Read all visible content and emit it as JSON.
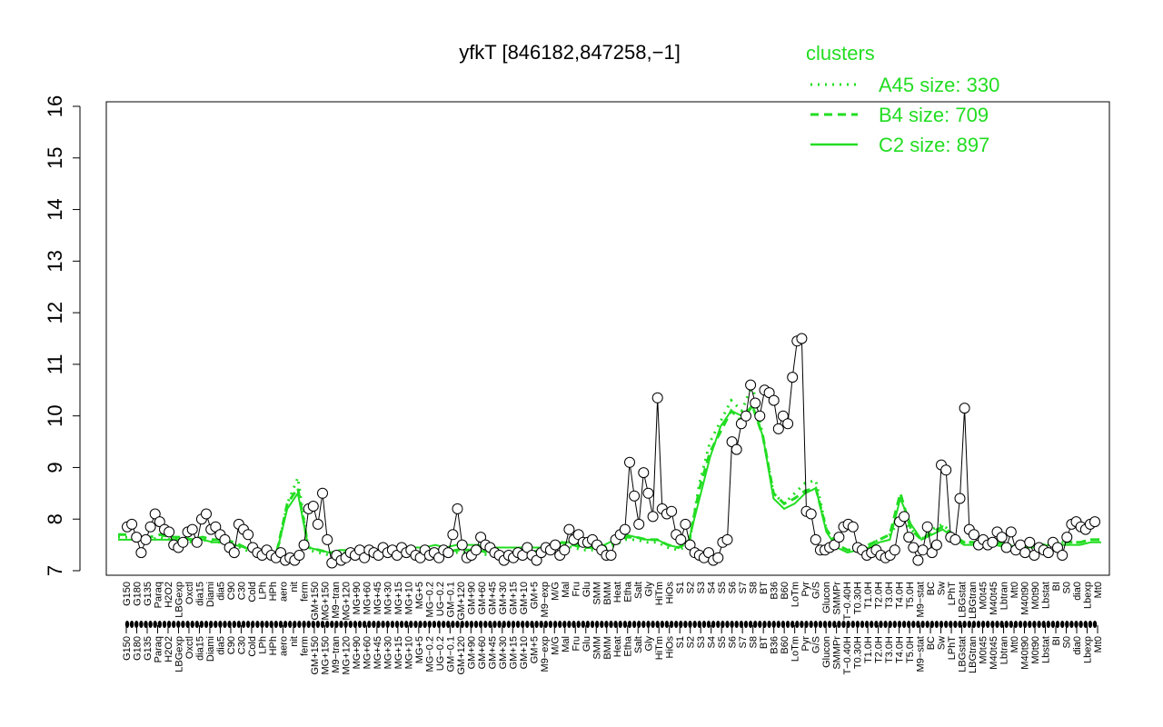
{
  "chart_data": {
    "type": "line",
    "title": "yfkT [846182,847258,−1]",
    "xlabel": "",
    "ylabel": "",
    "ylim": [
      7,
      16
    ],
    "yticks": [
      7,
      8,
      9,
      10,
      11,
      12,
      13,
      14,
      15,
      16
    ],
    "xticks": [
      "G150",
      "G180",
      "G135",
      "Paraq",
      "H2O2",
      "LBGexp",
      "Oxctl",
      "dia15",
      "Diami",
      "dia5",
      "C90",
      "C30",
      "Cold",
      "LPh",
      "HPh",
      "aero",
      "nit",
      "ferm",
      "GM+150",
      "MG+150",
      "M9−tran",
      "MG+120",
      "MG+90",
      "MG+60",
      "MG+45",
      "MG+30",
      "MG+15",
      "MG+10",
      "MG+5",
      "MG−0.2",
      "UG−0.2",
      "GM−0.1",
      "GM+120",
      "GM+90",
      "GM+60",
      "GM+45",
      "GM+30",
      "GM+15",
      "GM+10",
      "GM+5",
      "M9−exp",
      "M/G",
      "Mal",
      "Fru",
      "Glu",
      "SMM",
      "BMM",
      "Heat",
      "Etha",
      "Salt",
      "Gly",
      "HiTm",
      "HiOs",
      "S1",
      "S2",
      "S3",
      "S4",
      "S5",
      "S6",
      "S7",
      "S8",
      "BT",
      "B36",
      "B60",
      "LoTm",
      "Pyr",
      "G/S",
      "Glucon",
      "SMMPr",
      "T−0.40H",
      "T0.30H",
      "T1.0H",
      "T2.0H",
      "T3.0H",
      "T4.0H",
      "T5.0H",
      "M9−stat",
      "BC",
      "Sw",
      "LPhT",
      "LBGstat",
      "LBGtran",
      "M0t45",
      "M40t45",
      "Lbtran",
      "Mt0",
      "M40t90",
      "M0t90",
      "Lbstat",
      "BI",
      "S0",
      "dia0",
      "Lbexp",
      "Mt0"
    ],
    "legend": {
      "title": "clusters",
      "position": "top-right",
      "entries": [
        {
          "label": "A45 size: 330",
          "style": "dotted"
        },
        {
          "label": "B4 size: 709",
          "style": "dashed"
        },
        {
          "label": "C2 size: 897",
          "style": "solid"
        }
      ]
    },
    "series": [
      {
        "style": "dotted",
        "values": [
          7.65,
          7.65,
          7.6,
          7.6,
          7.65,
          7.6,
          7.6,
          7.55,
          7.6,
          7.55,
          7.55,
          7.5,
          7.4,
          7.35,
          7.3,
          7.3,
          8.3,
          8.8,
          7.4,
          7.35,
          7.3,
          7.3,
          7.3,
          7.3,
          7.3,
          7.3,
          7.3,
          7.3,
          7.3,
          7.3,
          7.35,
          7.3,
          7.35,
          7.35,
          7.35,
          7.3,
          7.3,
          7.3,
          7.3,
          7.3,
          7.35,
          7.4,
          7.5,
          7.45,
          7.4,
          7.4,
          7.4,
          7.5,
          7.6,
          7.6,
          7.55,
          7.55,
          7.45,
          7.4,
          7.5,
          8.7,
          9.5,
          9.9,
          10.3,
          10.1,
          10.6,
          9.6,
          8.5,
          8.3,
          8.5,
          8.7,
          8.75,
          7.8,
          7.5,
          7.4,
          7.4,
          7.5,
          7.6,
          7.7,
          8.0,
          7.8,
          7.6,
          7.8,
          7.9,
          7.7,
          7.55,
          7.55,
          7.6,
          7.55,
          7.5,
          7.45,
          7.45,
          7.5,
          7.5,
          7.55,
          7.55,
          7.55,
          7.6,
          7.6
        ]
      },
      {
        "style": "dashed",
        "values": [
          7.7,
          7.7,
          7.65,
          7.65,
          7.7,
          7.65,
          7.65,
          7.6,
          7.65,
          7.6,
          7.6,
          7.55,
          7.45,
          7.4,
          7.35,
          7.35,
          8.3,
          8.6,
          7.45,
          7.4,
          7.35,
          7.35,
          7.35,
          7.35,
          7.35,
          7.35,
          7.35,
          7.35,
          7.35,
          7.35,
          7.4,
          7.35,
          7.4,
          7.4,
          7.4,
          7.35,
          7.35,
          7.35,
          7.35,
          7.35,
          7.4,
          7.45,
          7.55,
          7.5,
          7.45,
          7.45,
          7.45,
          7.55,
          7.65,
          7.65,
          7.6,
          7.6,
          7.5,
          7.45,
          7.55,
          8.6,
          9.3,
          9.7,
          10.1,
          9.9,
          10.2,
          9.6,
          8.5,
          8.3,
          8.4,
          8.55,
          8.6,
          7.8,
          7.5,
          7.4,
          7.4,
          7.5,
          7.6,
          7.7,
          8.5,
          7.8,
          7.6,
          7.75,
          7.85,
          7.7,
          7.55,
          7.55,
          7.6,
          7.55,
          7.5,
          7.45,
          7.45,
          7.5,
          7.5,
          7.55,
          7.55,
          7.55,
          7.6,
          7.6
        ]
      },
      {
        "style": "solid",
        "values": [
          7.6,
          7.6,
          7.6,
          7.6,
          7.6,
          7.6,
          7.6,
          7.6,
          7.6,
          7.55,
          7.55,
          7.5,
          7.45,
          7.4,
          7.35,
          7.35,
          8.2,
          8.5,
          7.45,
          7.4,
          7.35,
          7.4,
          7.4,
          7.4,
          7.4,
          7.4,
          7.45,
          7.4,
          7.45,
          7.45,
          7.5,
          7.45,
          7.5,
          7.5,
          7.5,
          7.45,
          7.45,
          7.45,
          7.45,
          7.45,
          7.45,
          7.45,
          7.55,
          7.55,
          7.5,
          7.5,
          7.5,
          7.6,
          7.7,
          7.65,
          7.6,
          7.6,
          7.5,
          7.45,
          7.6,
          8.4,
          9.2,
          9.8,
          10.1,
          10.0,
          10.2,
          9.6,
          8.4,
          8.2,
          8.3,
          8.5,
          8.6,
          7.75,
          7.45,
          7.35,
          7.4,
          7.45,
          7.55,
          7.6,
          8.4,
          7.9,
          7.6,
          7.7,
          7.8,
          7.65,
          7.5,
          7.5,
          7.55,
          7.5,
          7.45,
          7.45,
          7.45,
          7.45,
          7.5,
          7.5,
          7.5,
          7.5,
          7.55,
          7.55
        ]
      }
    ],
    "points": [
      {
        "x": 1,
        "y": 7.85
      },
      {
        "x": 2,
        "y": 7.9
      },
      {
        "x": 3,
        "y": 7.65
      },
      {
        "x": 4,
        "y": 7.35
      },
      {
        "x": 5,
        "y": 7.6
      },
      {
        "x": 6,
        "y": 7.85
      },
      {
        "x": 7,
        "y": 8.1
      },
      {
        "x": 8,
        "y": 7.95
      },
      {
        "x": 9,
        "y": 7.8
      },
      {
        "x": 10,
        "y": 7.75
      },
      {
        "x": 11,
        "y": 7.5
      },
      {
        "x": 12,
        "y": 7.45
      },
      {
        "x": 13,
        "y": 7.55
      },
      {
        "x": 14,
        "y": 7.75
      },
      {
        "x": 15,
        "y": 7.8
      },
      {
        "x": 16,
        "y": 7.55
      },
      {
        "x": 17,
        "y": 8.0
      },
      {
        "x": 18,
        "y": 8.1
      },
      {
        "x": 19,
        "y": 7.8
      },
      {
        "x": 20,
        "y": 7.85
      },
      {
        "x": 21,
        "y": 7.7
      },
      {
        "x": 22,
        "y": 7.6
      },
      {
        "x": 23,
        "y": 7.45
      },
      {
        "x": 24,
        "y": 7.35
      },
      {
        "x": 25,
        "y": 7.9
      },
      {
        "x": 26,
        "y": 7.8
      },
      {
        "x": 27,
        "y": 7.7
      },
      {
        "x": 28,
        "y": 7.45
      },
      {
        "x": 29,
        "y": 7.35
      },
      {
        "x": 30,
        "y": 7.3
      },
      {
        "x": 31,
        "y": 7.4
      },
      {
        "x": 32,
        "y": 7.3
      },
      {
        "x": 33,
        "y": 7.25
      },
      {
        "x": 34,
        "y": 7.35
      },
      {
        "x": 35,
        "y": 7.2
      },
      {
        "x": 36,
        "y": 7.25
      },
      {
        "x": 37,
        "y": 7.2
      },
      {
        "x": 38,
        "y": 7.3
      },
      {
        "x": 39,
        "y": 7.5
      },
      {
        "x": 40,
        "y": 8.2
      },
      {
        "x": 41,
        "y": 8.25
      },
      {
        "x": 42,
        "y": 7.9
      },
      {
        "x": 43,
        "y": 8.5
      },
      {
        "x": 44,
        "y": 7.6
      },
      {
        "x": 45,
        "y": 7.15
      },
      {
        "x": 46,
        "y": 7.3
      },
      {
        "x": 47,
        "y": 7.2
      },
      {
        "x": 48,
        "y": 7.25
      },
      {
        "x": 49,
        "y": 7.35
      },
      {
        "x": 50,
        "y": 7.3
      },
      {
        "x": 51,
        "y": 7.4
      },
      {
        "x": 52,
        "y": 7.25
      },
      {
        "x": 53,
        "y": 7.4
      },
      {
        "x": 54,
        "y": 7.35
      },
      {
        "x": 55,
        "y": 7.3
      },
      {
        "x": 56,
        "y": 7.45
      },
      {
        "x": 57,
        "y": 7.35
      },
      {
        "x": 58,
        "y": 7.4
      },
      {
        "x": 59,
        "y": 7.3
      },
      {
        "x": 60,
        "y": 7.45
      },
      {
        "x": 61,
        "y": 7.35
      },
      {
        "x": 62,
        "y": 7.4
      },
      {
        "x": 63,
        "y": 7.3
      },
      {
        "x": 64,
        "y": 7.25
      },
      {
        "x": 65,
        "y": 7.4
      },
      {
        "x": 66,
        "y": 7.3
      },
      {
        "x": 67,
        "y": 7.35
      },
      {
        "x": 68,
        "y": 7.25
      },
      {
        "x": 69,
        "y": 7.4
      },
      {
        "x": 70,
        "y": 7.35
      },
      {
        "x": 71,
        "y": 7.7
      },
      {
        "x": 72,
        "y": 8.2
      },
      {
        "x": 73,
        "y": 7.5
      },
      {
        "x": 74,
        "y": 7.25
      },
      {
        "x": 75,
        "y": 7.3
      },
      {
        "x": 76,
        "y": 7.4
      },
      {
        "x": 77,
        "y": 7.65
      },
      {
        "x": 78,
        "y": 7.5
      },
      {
        "x": 79,
        "y": 7.45
      },
      {
        "x": 80,
        "y": 7.35
      },
      {
        "x": 81,
        "y": 7.3
      },
      {
        "x": 82,
        "y": 7.2
      },
      {
        "x": 83,
        "y": 7.3
      },
      {
        "x": 84,
        "y": 7.25
      },
      {
        "x": 85,
        "y": 7.35
      },
      {
        "x": 86,
        "y": 7.3
      },
      {
        "x": 87,
        "y": 7.45
      },
      {
        "x": 88,
        "y": 7.3
      },
      {
        "x": 89,
        "y": 7.2
      },
      {
        "x": 90,
        "y": 7.35
      },
      {
        "x": 91,
        "y": 7.45
      },
      {
        "x": 92,
        "y": 7.4
      },
      {
        "x": 93,
        "y": 7.5
      },
      {
        "x": 94,
        "y": 7.3
      },
      {
        "x": 95,
        "y": 7.4
      },
      {
        "x": 96,
        "y": 7.8
      },
      {
        "x": 97,
        "y": 7.6
      },
      {
        "x": 98,
        "y": 7.7
      },
      {
        "x": 99,
        "y": 7.55
      },
      {
        "x": 100,
        "y": 7.55
      },
      {
        "x": 101,
        "y": 7.6
      },
      {
        "x": 102,
        "y": 7.5
      },
      {
        "x": 103,
        "y": 7.4
      },
      {
        "x": 104,
        "y": 7.3
      },
      {
        "x": 105,
        "y": 7.3
      },
      {
        "x": 106,
        "y": 7.6
      },
      {
        "x": 107,
        "y": 7.7
      },
      {
        "x": 108,
        "y": 7.8
      },
      {
        "x": 109,
        "y": 9.1
      },
      {
        "x": 110,
        "y": 8.45
      },
      {
        "x": 111,
        "y": 7.9
      },
      {
        "x": 112,
        "y": 8.9
      },
      {
        "x": 113,
        "y": 8.5
      },
      {
        "x": 114,
        "y": 8.05
      },
      {
        "x": 115,
        "y": 10.35
      },
      {
        "x": 116,
        "y": 8.2
      },
      {
        "x": 117,
        "y": 8.1
      },
      {
        "x": 118,
        "y": 8.15
      },
      {
        "x": 119,
        "y": 7.7
      },
      {
        "x": 120,
        "y": 7.6
      },
      {
        "x": 121,
        "y": 7.9
      },
      {
        "x": 122,
        "y": 7.5
      },
      {
        "x": 123,
        "y": 7.35
      },
      {
        "x": 124,
        "y": 7.3
      },
      {
        "x": 125,
        "y": 7.25
      },
      {
        "x": 126,
        "y": 7.35
      },
      {
        "x": 127,
        "y": 7.2
      },
      {
        "x": 128,
        "y": 7.25
      },
      {
        "x": 129,
        "y": 7.55
      },
      {
        "x": 130,
        "y": 7.6
      },
      {
        "x": 131,
        "y": 9.5
      },
      {
        "x": 132,
        "y": 9.35
      },
      {
        "x": 133,
        "y": 9.85
      },
      {
        "x": 134,
        "y": 10.0
      },
      {
        "x": 135,
        "y": 10.6
      },
      {
        "x": 136,
        "y": 10.25
      },
      {
        "x": 137,
        "y": 10.0
      },
      {
        "x": 138,
        "y": 10.5
      },
      {
        "x": 139,
        "y": 10.45
      },
      {
        "x": 140,
        "y": 10.3
      },
      {
        "x": 141,
        "y": 9.75
      },
      {
        "x": 142,
        "y": 10.0
      },
      {
        "x": 143,
        "y": 9.85
      },
      {
        "x": 144,
        "y": 10.75
      },
      {
        "x": 145,
        "y": 11.45
      },
      {
        "x": 146,
        "y": 11.5
      },
      {
        "x": 147,
        "y": 8.15
      },
      {
        "x": 148,
        "y": 8.1
      },
      {
        "x": 149,
        "y": 7.6
      },
      {
        "x": 150,
        "y": 7.4
      },
      {
        "x": 151,
        "y": 7.4
      },
      {
        "x": 152,
        "y": 7.45
      },
      {
        "x": 153,
        "y": 7.5
      },
      {
        "x": 154,
        "y": 7.65
      },
      {
        "x": 155,
        "y": 7.85
      },
      {
        "x": 156,
        "y": 7.9
      },
      {
        "x": 157,
        "y": 7.85
      },
      {
        "x": 158,
        "y": 7.45
      },
      {
        "x": 159,
        "y": 7.4
      },
      {
        "x": 160,
        "y": 7.3
      },
      {
        "x": 161,
        "y": 7.35
      },
      {
        "x": 162,
        "y": 7.4
      },
      {
        "x": 163,
        "y": 7.3
      },
      {
        "x": 164,
        "y": 7.25
      },
      {
        "x": 165,
        "y": 7.3
      },
      {
        "x": 166,
        "y": 7.4
      },
      {
        "x": 167,
        "y": 7.95
      },
      {
        "x": 168,
        "y": 8.05
      },
      {
        "x": 169,
        "y": 7.65
      },
      {
        "x": 170,
        "y": 7.45
      },
      {
        "x": 171,
        "y": 7.2
      },
      {
        "x": 172,
        "y": 7.4
      },
      {
        "x": 173,
        "y": 7.85
      },
      {
        "x": 174,
        "y": 7.35
      },
      {
        "x": 175,
        "y": 7.5
      },
      {
        "x": 176,
        "y": 9.05
      },
      {
        "x": 177,
        "y": 8.95
      },
      {
        "x": 178,
        "y": 7.65
      },
      {
        "x": 179,
        "y": 7.6
      },
      {
        "x": 180,
        "y": 8.4
      },
      {
        "x": 181,
        "y": 10.15
      },
      {
        "x": 182,
        "y": 7.8
      },
      {
        "x": 183,
        "y": 7.7
      },
      {
        "x": 184,
        "y": 7.5
      },
      {
        "x": 185,
        "y": 7.6
      },
      {
        "x": 186,
        "y": 7.5
      },
      {
        "x": 187,
        "y": 7.55
      },
      {
        "x": 188,
        "y": 7.75
      },
      {
        "x": 189,
        "y": 7.65
      },
      {
        "x": 190,
        "y": 7.45
      },
      {
        "x": 191,
        "y": 7.75
      },
      {
        "x": 192,
        "y": 7.4
      },
      {
        "x": 193,
        "y": 7.5
      },
      {
        "x": 194,
        "y": 7.35
      },
      {
        "x": 195,
        "y": 7.55
      },
      {
        "x": 196,
        "y": 7.3
      },
      {
        "x": 197,
        "y": 7.45
      },
      {
        "x": 198,
        "y": 7.4
      },
      {
        "x": 199,
        "y": 7.35
      },
      {
        "x": 200,
        "y": 7.55
      },
      {
        "x": 201,
        "y": 7.45
      },
      {
        "x": 202,
        "y": 7.3
      },
      {
        "x": 203,
        "y": 7.65
      },
      {
        "x": 204,
        "y": 7.9
      },
      {
        "x": 205,
        "y": 7.95
      },
      {
        "x": 206,
        "y": 7.85
      },
      {
        "x": 207,
        "y": 7.8
      },
      {
        "x": 208,
        "y": 7.9
      },
      {
        "x": 209,
        "y": 7.95
      }
    ]
  }
}
